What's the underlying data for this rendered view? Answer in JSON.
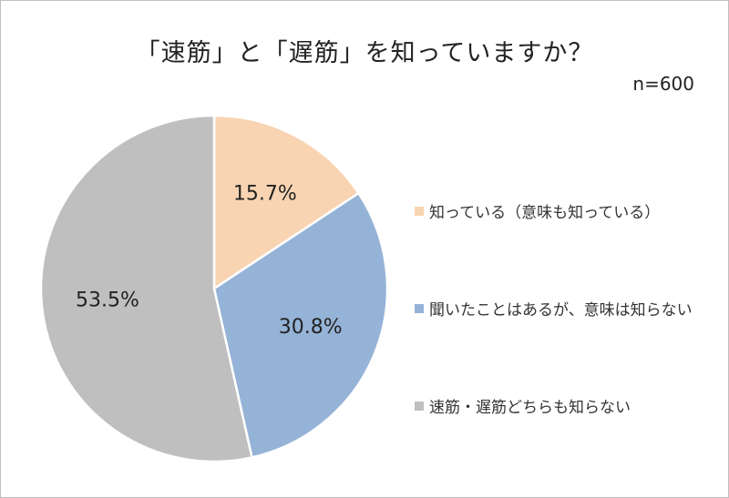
{
  "title": "「速筋」と「遅筋」を知っていますか？",
  "sample_size": "n=600",
  "colors": {
    "slice_1": "#f8d4b2",
    "slice_2": "#95b3d7",
    "slice_3": "#bfbfbf",
    "border": "#ffffff"
  },
  "chart_data": {
    "type": "pie",
    "title": "「速筋」と「遅筋」を知っていますか？",
    "categories": [
      "知っている（意味も知っている）",
      "聞いたことはあるが、意味は知らない",
      "速筋・遅筋どちらも知らない"
    ],
    "values": [
      15.7,
      30.8,
      53.5
    ],
    "labels": [
      "15.7%",
      "30.8%",
      "53.5%"
    ],
    "legend_position": "right"
  }
}
